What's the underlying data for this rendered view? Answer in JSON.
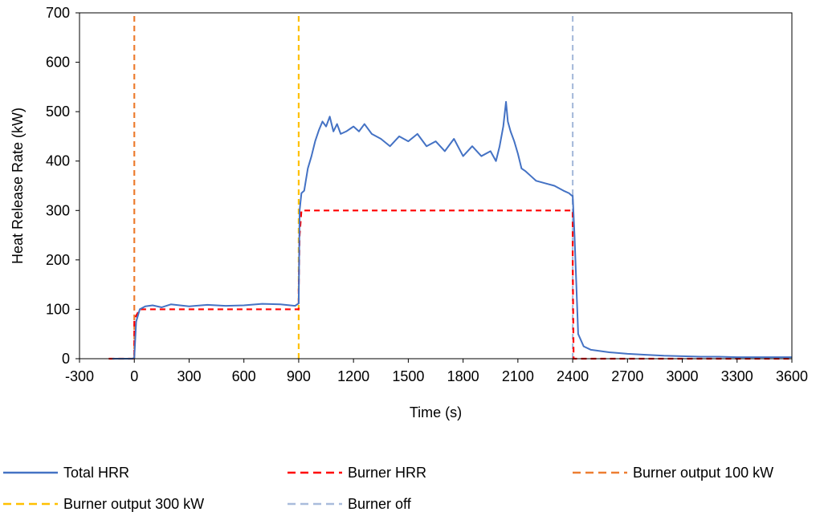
{
  "chart_data": {
    "type": "line",
    "xlabel": "Time (s)",
    "ylabel": "Heat Release Rate (kW)",
    "xlim": [
      -300,
      3600
    ],
    "ylim": [
      0,
      700
    ],
    "xticks": [
      -300,
      0,
      300,
      600,
      900,
      1200,
      1500,
      1800,
      2100,
      2400,
      2700,
      3000,
      3300,
      3600
    ],
    "yticks": [
      0,
      100,
      200,
      300,
      400,
      500,
      600,
      700
    ],
    "grid": false,
    "legend_position": "bottom",
    "series": [
      {
        "name": "Total HRR",
        "style": "solid",
        "color": "#4472C4",
        "x": [
          -120,
          -10,
          0,
          10,
          30,
          60,
          100,
          150,
          200,
          300,
          400,
          500,
          600,
          700,
          800,
          880,
          900,
          905,
          915,
          930,
          950,
          970,
          990,
          1010,
          1030,
          1050,
          1070,
          1090,
          1110,
          1130,
          1160,
          1200,
          1230,
          1260,
          1300,
          1350,
          1400,
          1450,
          1500,
          1550,
          1600,
          1650,
          1700,
          1750,
          1800,
          1850,
          1900,
          1950,
          1980,
          2000,
          2020,
          2035,
          2045,
          2060,
          2080,
          2100,
          2120,
          2140,
          2170,
          2200,
          2250,
          2300,
          2350,
          2380,
          2395,
          2400,
          2410,
          2430,
          2460,
          2500,
          2600,
          2700,
          2800,
          2900,
          3000,
          3100,
          3200,
          3300,
          3400,
          3500,
          3600
        ],
        "y": [
          0,
          0,
          2,
          75,
          100,
          106,
          108,
          104,
          110,
          106,
          109,
          107,
          108,
          111,
          110,
          107,
          112,
          300,
          335,
          340,
          385,
          410,
          440,
          462,
          480,
          470,
          490,
          460,
          475,
          455,
          460,
          470,
          460,
          475,
          455,
          445,
          430,
          450,
          440,
          455,
          430,
          440,
          420,
          445,
          410,
          430,
          410,
          420,
          400,
          430,
          470,
          520,
          480,
          460,
          440,
          415,
          385,
          380,
          370,
          360,
          355,
          350,
          340,
          335,
          330,
          330,
          250,
          50,
          25,
          18,
          13,
          10,
          8,
          6,
          5,
          4,
          4,
          3,
          3,
          3,
          3
        ]
      },
      {
        "name": "Burner HRR",
        "style": "dashed",
        "color": "#FF0000",
        "x": [
          -140,
          0,
          0,
          30,
          900,
          900,
          905,
          915,
          2400,
          2400,
          2405,
          3600
        ],
        "y": [
          0,
          0,
          80,
          100,
          100,
          140,
          250,
          300,
          300,
          200,
          0,
          0
        ]
      },
      {
        "name": "Burner output 100 kW",
        "style": "dashed",
        "color": "#ED7D31",
        "x": [
          0,
          0
        ],
        "y": [
          0,
          700
        ]
      },
      {
        "name": "Burner output 300 kW",
        "style": "dashed",
        "color": "#FFC000",
        "x": [
          900,
          900
        ],
        "y": [
          0,
          700
        ]
      },
      {
        "name": "Burner off",
        "style": "dashed",
        "color": "#A9BCDC",
        "x": [
          2400,
          2400
        ],
        "y": [
          0,
          700
        ]
      }
    ]
  }
}
